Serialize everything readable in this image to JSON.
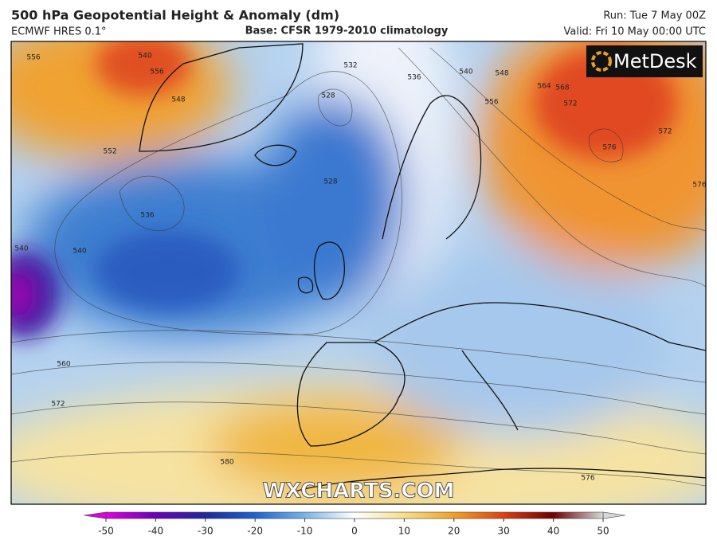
{
  "header": {
    "title": "500 hPa Geopotential Height & Anomaly (dm)",
    "model": "ECMWF HRES 0.1°",
    "base": "Base: CFSR 1979-2010 climatology",
    "run": "Run: Tue 7 May 00Z",
    "valid": "Valid: Fri 10 May 00:00 UTC"
  },
  "logo": "MetDesk",
  "watermark": "WXCHARTS.COM",
  "contour_labels": [
    "556",
    "540",
    "556",
    "548",
    "552",
    "532",
    "528",
    "536",
    "540",
    "548",
    "556",
    "564",
    "568",
    "572",
    "576",
    "572",
    "576",
    "528",
    "536",
    "540",
    "540",
    "560",
    "572",
    "580",
    "576"
  ],
  "colorbar": {
    "ticks": [
      -50,
      -40,
      -30,
      -20,
      -10,
      0,
      10,
      20,
      30,
      40,
      50
    ],
    "colors": [
      "#e000e0",
      "#6a00b8",
      "#1c2a9c",
      "#1f62cf",
      "#78b4e8",
      "#ffffff",
      "#f6df86",
      "#f0a024",
      "#dd4010",
      "#6e0000",
      "#d8d8d8"
    ]
  }
}
